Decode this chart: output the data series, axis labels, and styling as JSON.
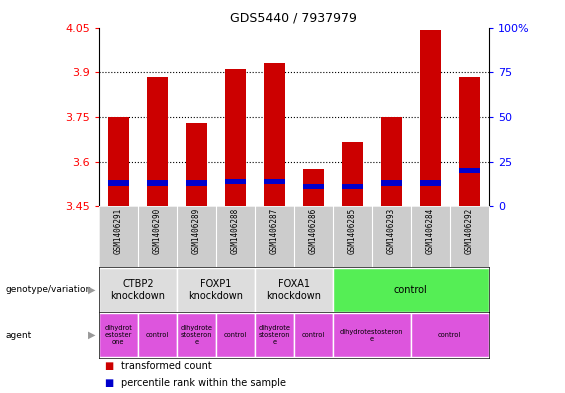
{
  "title": "GDS5440 / 7937979",
  "samples": [
    "GSM1406291",
    "GSM1406290",
    "GSM1406289",
    "GSM1406288",
    "GSM1406287",
    "GSM1406286",
    "GSM1406285",
    "GSM1406293",
    "GSM1406284",
    "GSM1406292"
  ],
  "transformed_counts": [
    3.75,
    3.885,
    3.73,
    3.91,
    3.93,
    3.575,
    3.665,
    3.75,
    4.04,
    3.885
  ],
  "percentile_ranks": [
    13,
    13,
    13,
    14,
    14,
    11,
    11,
    13,
    13,
    20
  ],
  "ymin": 3.45,
  "ymax": 4.05,
  "yticks": [
    3.45,
    3.6,
    3.75,
    3.9,
    4.05
  ],
  "ytick_labels": [
    "3.45",
    "3.6",
    "3.75",
    "3.9",
    "4.05"
  ],
  "right_yticks": [
    0,
    25,
    50,
    75,
    100
  ],
  "right_ytick_labels": [
    "0",
    "25",
    "50",
    "75",
    "100%"
  ],
  "bar_color": "#cc0000",
  "marker_color": "#0000cc",
  "genotype_groups": [
    {
      "label": "CTBP2\nknockdown",
      "start": 0,
      "end": 2,
      "color": "#dddddd"
    },
    {
      "label": "FOXP1\nknockdown",
      "start": 2,
      "end": 4,
      "color": "#dddddd"
    },
    {
      "label": "FOXA1\nknockdown",
      "start": 4,
      "end": 6,
      "color": "#dddddd"
    },
    {
      "label": "control",
      "start": 6,
      "end": 10,
      "color": "#55ee55"
    }
  ],
  "agent_groups": [
    {
      "label": "dihydrot\nestoster\none",
      "start": 0,
      "end": 1,
      "color": "#dd55dd"
    },
    {
      "label": "control",
      "start": 1,
      "end": 2,
      "color": "#dd55dd"
    },
    {
      "label": "dihydrote\nstosteron\ne",
      "start": 2,
      "end": 3,
      "color": "#dd55dd"
    },
    {
      "label": "control",
      "start": 3,
      "end": 4,
      "color": "#dd55dd"
    },
    {
      "label": "dihydrote\nstosteron\ne",
      "start": 4,
      "end": 5,
      "color": "#dd55dd"
    },
    {
      "label": "control",
      "start": 5,
      "end": 6,
      "color": "#dd55dd"
    },
    {
      "label": "dihydrotestosteron\ne",
      "start": 6,
      "end": 8,
      "color": "#dd55dd"
    },
    {
      "label": "control",
      "start": 8,
      "end": 10,
      "color": "#dd55dd"
    }
  ],
  "legend_items": [
    {
      "label": "transformed count",
      "color": "#cc0000"
    },
    {
      "label": "percentile rank within the sample",
      "color": "#0000cc"
    }
  ],
  "bar_width": 0.55
}
